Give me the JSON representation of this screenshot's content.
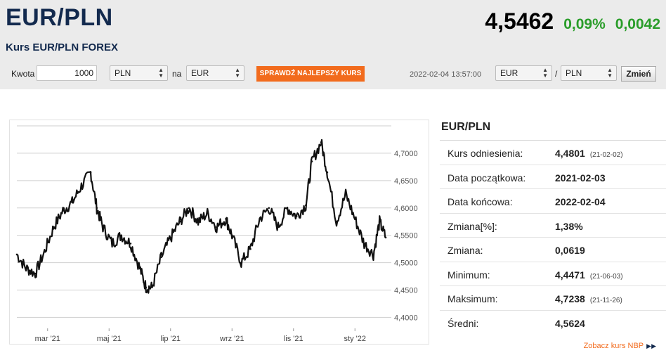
{
  "header": {
    "pair": "EUR/PLN",
    "subtitle": "Kurs EUR/PLN FOREX",
    "price": "4,5462",
    "change_pct": "0,09%",
    "change_abs": "0,0042",
    "change_color": "#2a9d2a"
  },
  "toolbar": {
    "amount_label": "Kwota",
    "amount_value": "1000",
    "from_currency": "PLN",
    "na_label": "na",
    "to_currency": "EUR",
    "best_rate_button": "SPRAWDŹ NAJLEPSZY KURS",
    "timestamp": "2022-02-04 13:57:00",
    "pair_from": "EUR",
    "pair_separator": "/",
    "pair_to": "PLN",
    "change_button": "Zmień",
    "accent_color": "#f26b1d"
  },
  "stats": {
    "title": "EUR/PLN",
    "rows": [
      {
        "label": "Kurs odniesienia:",
        "value": "4,4801",
        "date": "(21-02-02)"
      },
      {
        "label": "Data początkowa:",
        "value": "2021-02-03",
        "date": ""
      },
      {
        "label": "Data końcowa:",
        "value": "2022-02-04",
        "date": ""
      },
      {
        "label": "Zmiana[%]:",
        "value": "1,38%",
        "date": ""
      },
      {
        "label": "Zmiana:",
        "value": "0,0619",
        "date": ""
      },
      {
        "label": "Minimum:",
        "value": "4,4471",
        "date": "(21-06-03)"
      },
      {
        "label": "Maksimum:",
        "value": "4,7238",
        "date": "(21-11-26)"
      },
      {
        "label": "Średni:",
        "value": "4,5624",
        "date": ""
      }
    ],
    "nbp_link": "Zobacz kurs NBP"
  },
  "chart_data": {
    "type": "line",
    "series_color": "#111111",
    "grid": true,
    "ylim": [
      4.38,
      4.75
    ],
    "y_ticks": [
      "4,4000",
      "4,4500",
      "4,5000",
      "4,5500",
      "4,6000",
      "4,6500",
      "4,7000"
    ],
    "y_tick_values": [
      4.4,
      4.45,
      4.5,
      4.55,
      4.6,
      4.65,
      4.7
    ],
    "x_ticks": [
      "mar '21",
      "maj '21",
      "lip '21",
      "wrz '21",
      "lis '21",
      "sty '22"
    ],
    "x_tick_positions": [
      1,
      3,
      5,
      7,
      9,
      11
    ],
    "x_range": [
      0,
      12
    ],
    "x": [
      0,
      0.3,
      0.6,
      0.9,
      1.2,
      1.5,
      1.8,
      2.1,
      2.4,
      2.6,
      2.8,
      3.1,
      3.4,
      3.7,
      4.0,
      4.2,
      4.4,
      4.7,
      5.0,
      5.3,
      5.6,
      5.9,
      6.2,
      6.5,
      6.8,
      7.0,
      7.3,
      7.6,
      7.9,
      8.2,
      8.5,
      8.8,
      9.1,
      9.4,
      9.6,
      9.9,
      10.1,
      10.4,
      10.7,
      11.0,
      11.3,
      11.6,
      11.8,
      12.0
    ],
    "values": [
      4.515,
      4.49,
      4.48,
      4.52,
      4.565,
      4.595,
      4.61,
      4.64,
      4.665,
      4.6,
      4.565,
      4.535,
      4.55,
      4.535,
      4.49,
      4.455,
      4.455,
      4.51,
      4.545,
      4.575,
      4.6,
      4.575,
      4.59,
      4.565,
      4.58,
      4.55,
      4.5,
      4.525,
      4.58,
      4.6,
      4.565,
      4.6,
      4.585,
      4.605,
      4.685,
      4.72,
      4.665,
      4.575,
      4.625,
      4.58,
      4.535,
      4.515,
      4.575,
      4.546
    ]
  }
}
